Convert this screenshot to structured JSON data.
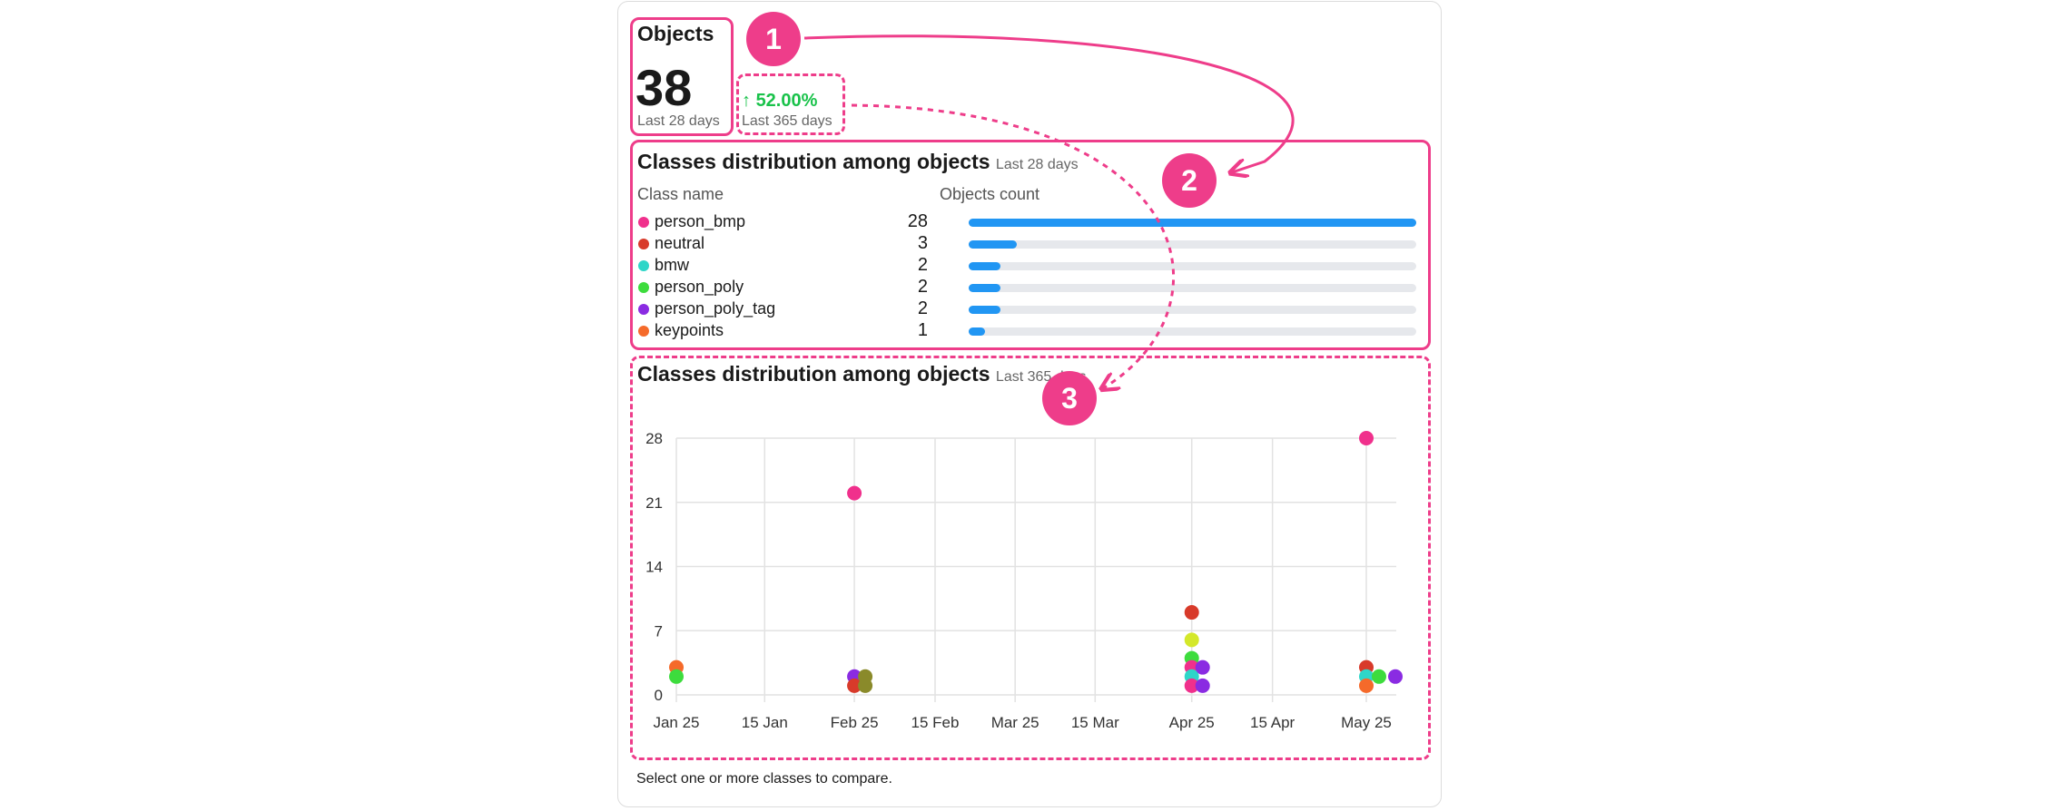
{
  "objects_card": {
    "title": "Objects",
    "count": "38",
    "period": "Last 28 days",
    "change_pct": "52.00%",
    "change_arrow": "↑",
    "change_period": "Last 365 days"
  },
  "distribution_panel": {
    "title": "Classes distribution among objects",
    "period": "Last 28 days",
    "col_class": "Class name",
    "col_count": "Objects count",
    "classes": [
      {
        "name": "person_bmp",
        "count": 28,
        "color": "#f0308c"
      },
      {
        "name": "neutral",
        "count": 3,
        "color": "#d83a2a"
      },
      {
        "name": "bmw",
        "count": 2,
        "color": "#2ed6c8"
      },
      {
        "name": "person_poly",
        "count": 2,
        "color": "#3ddc3d"
      },
      {
        "name": "person_poly_tag",
        "count": 2,
        "color": "#8a2be2"
      },
      {
        "name": "keypoints",
        "count": 1,
        "color": "#f56a2a"
      }
    ]
  },
  "timeline_panel": {
    "title": "Classes distribution among objects",
    "period": "Last 365 days"
  },
  "annotations": [
    "1",
    "2",
    "3"
  ],
  "footer_hint": "Select one or more classes to compare.",
  "chart_data": {
    "type": "scatter",
    "title": "",
    "xlabel": "",
    "ylabel": "",
    "ylim": [
      0,
      28
    ],
    "yticks": [
      0,
      7,
      14,
      21,
      28
    ],
    "xtick_labels": [
      "Jan 25",
      "15 Jan",
      "Feb 25",
      "15 Feb",
      "Mar 25",
      "15 Mar",
      "Apr 25",
      "15 Apr",
      "May 25"
    ],
    "grid": true,
    "points": [
      {
        "x": "Jan 25",
        "y": 3,
        "color": "#f56a2a"
      },
      {
        "x": "Jan 25",
        "y": 2,
        "color": "#3ddc3d"
      },
      {
        "x": "Feb 25",
        "y": 22,
        "color": "#f0308c"
      },
      {
        "x": "Feb 25",
        "y": 2,
        "color": "#8a2be2"
      },
      {
        "x": "Feb 25",
        "y": 1,
        "color": "#d83a2a"
      },
      {
        "x": "Feb 25",
        "y": 2,
        "color": "#8a8a2a"
      },
      {
        "x": "Feb 25",
        "y": 1,
        "color": "#8a8a2a"
      },
      {
        "x": "Apr 25",
        "y": 9,
        "color": "#d83a2a"
      },
      {
        "x": "Apr 25",
        "y": 6,
        "color": "#d4e82a"
      },
      {
        "x": "Apr 25",
        "y": 4,
        "color": "#3ddc3d"
      },
      {
        "x": "Apr 25",
        "y": 3,
        "color": "#f0308c"
      },
      {
        "x": "Apr 25",
        "y": 2,
        "color": "#2ed6c8"
      },
      {
        "x": "Apr 25",
        "y": 1,
        "color": "#f0308c"
      },
      {
        "x": "Apr 25",
        "y": 3,
        "color": "#8a2be2"
      },
      {
        "x": "Apr 25",
        "y": 1,
        "color": "#8a2be2"
      },
      {
        "x": "May 25",
        "y": 28,
        "color": "#f0308c"
      },
      {
        "x": "May 25",
        "y": 3,
        "color": "#d83a2a"
      },
      {
        "x": "May 25",
        "y": 2,
        "color": "#2ed6c8"
      },
      {
        "x": "May 25",
        "y": 1,
        "color": "#f56a2a"
      },
      {
        "x": "May 25",
        "y": 2,
        "color": "#3ddc3d"
      },
      {
        "x": "May 25",
        "y": 2,
        "color": "#8a2be2"
      }
    ]
  }
}
